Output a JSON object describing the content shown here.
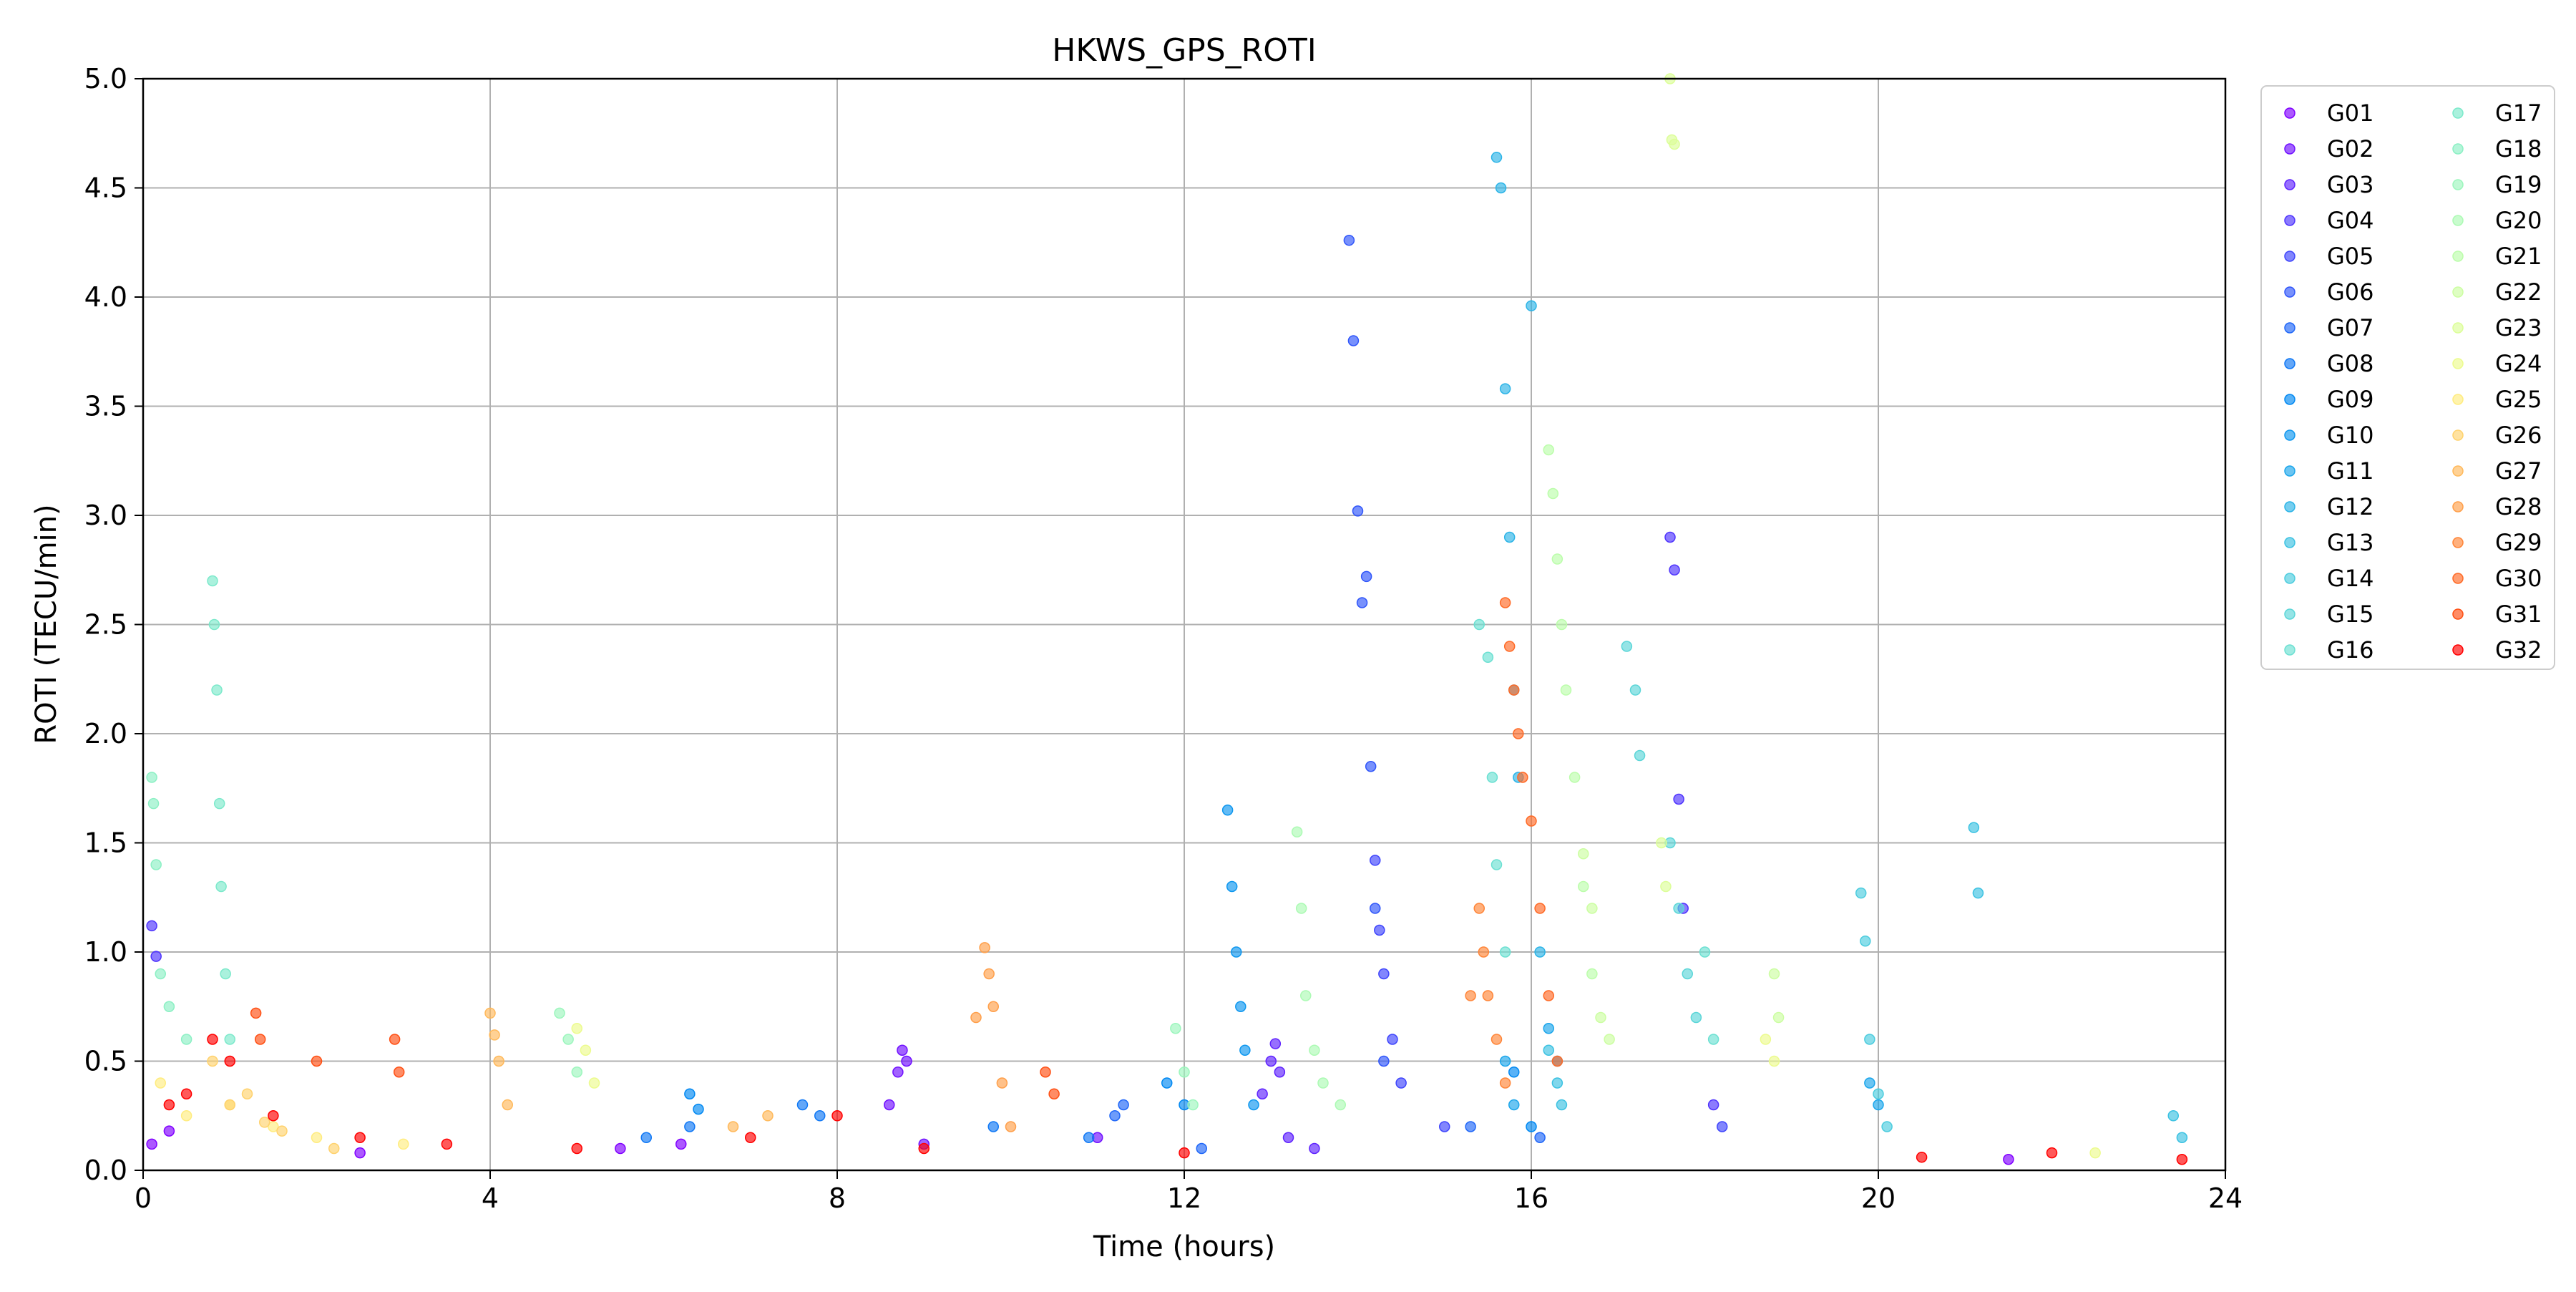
{
  "chart_data": {
    "type": "scatter",
    "title": "HKWS_GPS_ROTI",
    "xlabel": "Time (hours)",
    "ylabel": "ROTI (TECU/min)",
    "xlim": [
      0,
      24
    ],
    "ylim": [
      0,
      5
    ],
    "xticks": [
      0,
      4,
      8,
      12,
      16,
      20,
      24
    ],
    "yticks": [
      0.0,
      0.5,
      1.0,
      1.5,
      2.0,
      2.5,
      3.0,
      3.5,
      4.0,
      4.5,
      5.0
    ],
    "xtick_labels": [
      "0",
      "4",
      "8",
      "12",
      "16",
      "20",
      "24"
    ],
    "ytick_labels": [
      "0.0",
      "0.5",
      "1.0",
      "1.5",
      "2.0",
      "2.5",
      "3.0",
      "3.5",
      "4.0",
      "4.5",
      "5.0"
    ],
    "grid": true,
    "legend_position": "outside-right",
    "legend_columns": 2,
    "colormap": "rainbow",
    "series": [
      {
        "name": "G01",
        "color": "#8000ff",
        "points": [
          [
            0.1,
            0.12
          ],
          [
            0.3,
            0.18
          ],
          [
            2.5,
            0.08
          ],
          [
            5.5,
            0.1
          ],
          [
            6.2,
            0.12
          ],
          [
            21.5,
            0.05
          ]
        ]
      },
      {
        "name": "G02",
        "color": "#7010ff",
        "points": [
          [
            8.6,
            0.3
          ],
          [
            8.7,
            0.45
          ],
          [
            8.75,
            0.55
          ],
          [
            8.8,
            0.5
          ],
          [
            9.0,
            0.12
          ],
          [
            11.0,
            0.15
          ]
        ]
      },
      {
        "name": "G03",
        "color": "#5f23fe",
        "points": [
          [
            12.9,
            0.35
          ],
          [
            13.0,
            0.5
          ],
          [
            13.05,
            0.58
          ],
          [
            13.1,
            0.45
          ],
          [
            13.2,
            0.15
          ],
          [
            13.5,
            0.1
          ]
        ]
      },
      {
        "name": "G04",
        "color": "#4f34fd",
        "points": [
          [
            0.1,
            1.12
          ],
          [
            0.15,
            0.98
          ],
          [
            17.6,
            2.9
          ],
          [
            17.65,
            2.75
          ],
          [
            17.7,
            1.7
          ],
          [
            17.75,
            1.2
          ],
          [
            18.1,
            0.3
          ]
        ]
      },
      {
        "name": "G05",
        "color": "#3f45fc",
        "points": [
          [
            14.2,
            1.42
          ],
          [
            14.25,
            1.1
          ],
          [
            14.3,
            0.9
          ],
          [
            14.4,
            0.6
          ],
          [
            14.5,
            0.4
          ],
          [
            15.0,
            0.2
          ],
          [
            18.2,
            0.2
          ]
        ]
      },
      {
        "name": "G06",
        "color": "#3056fa",
        "points": [
          [
            13.9,
            4.26
          ],
          [
            13.95,
            3.8
          ],
          [
            14.0,
            3.02
          ],
          [
            14.05,
            2.6
          ],
          [
            14.1,
            2.72
          ],
          [
            14.15,
            1.85
          ],
          [
            14.2,
            1.2
          ],
          [
            14.3,
            0.5
          ]
        ]
      },
      {
        "name": "G07",
        "color": "#2067f8",
        "points": [
          [
            11.2,
            0.25
          ],
          [
            11.3,
            0.3
          ],
          [
            12.2,
            0.1
          ],
          [
            15.3,
            0.2
          ],
          [
            16.1,
            0.15
          ]
        ]
      },
      {
        "name": "G08",
        "color": "#1078f5",
        "points": [
          [
            5.8,
            0.15
          ],
          [
            6.3,
            0.2
          ],
          [
            7.6,
            0.3
          ],
          [
            7.8,
            0.25
          ],
          [
            9.8,
            0.2
          ],
          [
            10.9,
            0.15
          ]
        ]
      },
      {
        "name": "G09",
        "color": "#0088f2",
        "points": [
          [
            6.3,
            0.35
          ],
          [
            6.4,
            0.28
          ],
          [
            11.8,
            0.4
          ],
          [
            12.0,
            0.3
          ],
          [
            15.8,
            0.45
          ],
          [
            16.0,
            0.2
          ]
        ]
      },
      {
        "name": "G10",
        "color": "#0e97ef",
        "points": [
          [
            12.5,
            1.65
          ],
          [
            12.55,
            1.3
          ],
          [
            12.6,
            1.0
          ],
          [
            12.65,
            0.75
          ],
          [
            12.7,
            0.55
          ],
          [
            12.8,
            0.3
          ]
        ]
      },
      {
        "name": "G11",
        "color": "#1ca6eb",
        "points": [
          [
            15.7,
            0.5
          ],
          [
            15.8,
            0.3
          ],
          [
            16.2,
            0.65
          ],
          [
            16.3,
            0.5
          ],
          [
            19.9,
            0.4
          ],
          [
            20.0,
            0.3
          ]
        ]
      },
      {
        "name": "G12",
        "color": "#2cb4e7",
        "points": [
          [
            15.6,
            4.64
          ],
          [
            15.65,
            4.5
          ],
          [
            15.7,
            3.58
          ],
          [
            15.75,
            2.9
          ],
          [
            15.8,
            2.2
          ],
          [
            15.85,
            1.8
          ],
          [
            16.0,
            3.96
          ],
          [
            16.1,
            1.0
          ]
        ]
      },
      {
        "name": "G13",
        "color": "#3cc2e2",
        "points": [
          [
            16.2,
            0.55
          ],
          [
            16.3,
            0.4
          ],
          [
            16.35,
            0.3
          ],
          [
            21.1,
            1.57
          ],
          [
            21.15,
            1.27
          ],
          [
            23.4,
            0.25
          ],
          [
            23.5,
            0.15
          ]
        ]
      },
      {
        "name": "G14",
        "color": "#4cccde",
        "points": [
          [
            19.8,
            1.27
          ],
          [
            19.85,
            1.05
          ],
          [
            19.9,
            0.6
          ],
          [
            20.0,
            0.35
          ],
          [
            20.1,
            0.2
          ]
        ]
      },
      {
        "name": "G15",
        "color": "#5cd6d8",
        "points": [
          [
            17.1,
            2.4
          ],
          [
            17.2,
            2.2
          ],
          [
            17.25,
            1.9
          ],
          [
            17.6,
            1.5
          ],
          [
            17.7,
            1.2
          ],
          [
            17.8,
            0.9
          ],
          [
            17.9,
            0.7
          ]
        ]
      },
      {
        "name": "G16",
        "color": "#6ce0d2",
        "points": [
          [
            15.4,
            2.5
          ],
          [
            15.5,
            2.35
          ],
          [
            15.55,
            1.8
          ],
          [
            15.6,
            1.4
          ],
          [
            15.7,
            1.0
          ],
          [
            18.0,
            1.0
          ],
          [
            18.1,
            0.6
          ]
        ]
      },
      {
        "name": "G17",
        "color": "#7ce9cb",
        "points": [
          [
            0.8,
            2.7
          ],
          [
            0.82,
            2.5
          ],
          [
            0.85,
            2.2
          ],
          [
            0.88,
            1.68
          ],
          [
            0.9,
            1.3
          ],
          [
            0.95,
            0.9
          ],
          [
            1.0,
            0.6
          ]
        ]
      },
      {
        "name": "G18",
        "color": "#8cf0c4",
        "points": [
          [
            0.1,
            1.8
          ],
          [
            0.12,
            1.68
          ],
          [
            0.15,
            1.4
          ],
          [
            0.2,
            0.9
          ],
          [
            0.3,
            0.75
          ],
          [
            0.5,
            0.6
          ]
        ]
      },
      {
        "name": "G19",
        "color": "#9cf6bd",
        "points": [
          [
            4.8,
            0.72
          ],
          [
            4.9,
            0.6
          ],
          [
            5.0,
            0.45
          ],
          [
            11.9,
            0.65
          ],
          [
            12.0,
            0.45
          ],
          [
            12.1,
            0.3
          ]
        ]
      },
      {
        "name": "G20",
        "color": "#acfab4",
        "points": [
          [
            13.3,
            1.55
          ],
          [
            13.35,
            1.2
          ],
          [
            13.4,
            0.8
          ],
          [
            13.5,
            0.55
          ],
          [
            13.6,
            0.4
          ],
          [
            13.8,
            0.3
          ]
        ]
      },
      {
        "name": "G21",
        "color": "#bcfdab",
        "points": [
          [
            16.2,
            3.3
          ],
          [
            16.25,
            3.1
          ],
          [
            16.3,
            2.8
          ],
          [
            16.35,
            2.5
          ],
          [
            16.4,
            2.2
          ],
          [
            16.5,
            1.8
          ],
          [
            16.6,
            1.3
          ],
          [
            16.7,
            0.9
          ]
        ]
      },
      {
        "name": "G22",
        "color": "#ccfea2",
        "points": [
          [
            16.6,
            1.45
          ],
          [
            16.7,
            1.2
          ],
          [
            16.8,
            0.7
          ],
          [
            16.9,
            0.6
          ],
          [
            18.8,
            0.9
          ],
          [
            18.85,
            0.7
          ]
        ]
      },
      {
        "name": "G23",
        "color": "#dcfe98",
        "points": [
          [
            17.6,
            5.0
          ],
          [
            17.62,
            4.72
          ],
          [
            17.65,
            4.7
          ],
          [
            17.5,
            1.5
          ],
          [
            17.55,
            1.3
          ]
        ]
      },
      {
        "name": "G24",
        "color": "#ecfb8e",
        "points": [
          [
            5.0,
            0.65
          ],
          [
            5.1,
            0.55
          ],
          [
            5.2,
            0.4
          ],
          [
            18.7,
            0.6
          ],
          [
            18.8,
            0.5
          ],
          [
            22.5,
            0.08
          ]
        ]
      },
      {
        "name": "G25",
        "color": "#ffec7f",
        "points": [
          [
            0.2,
            0.4
          ],
          [
            0.5,
            0.25
          ],
          [
            1.0,
            0.3
          ],
          [
            1.5,
            0.2
          ],
          [
            2.0,
            0.15
          ],
          [
            3.0,
            0.12
          ]
        ]
      },
      {
        "name": "G26",
        "color": "#ffd26d",
        "points": [
          [
            0.8,
            0.5
          ],
          [
            1.0,
            0.3
          ],
          [
            1.2,
            0.35
          ],
          [
            1.4,
            0.22
          ],
          [
            1.6,
            0.18
          ],
          [
            2.2,
            0.1
          ]
        ]
      },
      {
        "name": "G27",
        "color": "#ffb95b",
        "points": [
          [
            4.0,
            0.72
          ],
          [
            4.05,
            0.62
          ],
          [
            4.1,
            0.5
          ],
          [
            4.2,
            0.3
          ],
          [
            6.8,
            0.2
          ],
          [
            7.2,
            0.25
          ]
        ]
      },
      {
        "name": "G28",
        "color": "#ff9f4a",
        "points": [
          [
            9.6,
            0.7
          ],
          [
            9.7,
            1.02
          ],
          [
            9.75,
            0.9
          ],
          [
            9.8,
            0.75
          ],
          [
            9.9,
            0.4
          ],
          [
            10.0,
            0.2
          ]
        ]
      },
      {
        "name": "G29",
        "color": "#ff8538",
        "points": [
          [
            15.3,
            0.8
          ],
          [
            15.4,
            1.2
          ],
          [
            15.45,
            1.0
          ],
          [
            15.5,
            0.8
          ],
          [
            15.6,
            0.6
          ],
          [
            15.7,
            0.4
          ]
        ]
      },
      {
        "name": "G30",
        "color": "#ff6a26",
        "points": [
          [
            15.7,
            2.6
          ],
          [
            15.75,
            2.4
          ],
          [
            15.8,
            2.2
          ],
          [
            15.85,
            2.0
          ],
          [
            15.9,
            1.8
          ],
          [
            16.0,
            1.6
          ],
          [
            16.1,
            1.2
          ],
          [
            16.2,
            0.8
          ],
          [
            16.3,
            0.5
          ]
        ]
      },
      {
        "name": "G31",
        "color": "#ff4f13",
        "points": [
          [
            1.3,
            0.72
          ],
          [
            1.35,
            0.6
          ],
          [
            2.0,
            0.5
          ],
          [
            2.9,
            0.6
          ],
          [
            2.95,
            0.45
          ],
          [
            10.4,
            0.45
          ],
          [
            10.5,
            0.35
          ]
        ]
      },
      {
        "name": "G32",
        "color": "#ff0000",
        "points": [
          [
            0.3,
            0.3
          ],
          [
            0.5,
            0.35
          ],
          [
            0.8,
            0.6
          ],
          [
            1.0,
            0.5
          ],
          [
            1.5,
            0.25
          ],
          [
            2.5,
            0.15
          ],
          [
            3.5,
            0.12
          ],
          [
            5.0,
            0.1
          ],
          [
            7.0,
            0.15
          ],
          [
            8.0,
            0.25
          ],
          [
            9.0,
            0.1
          ],
          [
            12.0,
            0.08
          ],
          [
            20.5,
            0.06
          ],
          [
            22.0,
            0.08
          ],
          [
            23.5,
            0.05
          ]
        ]
      }
    ]
  }
}
